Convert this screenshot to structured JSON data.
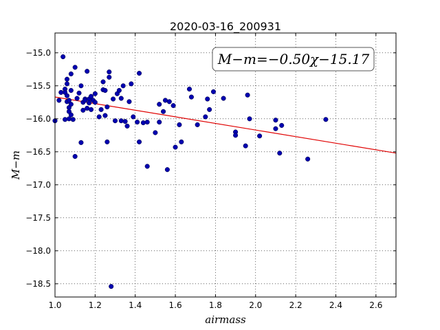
{
  "chart_data": {
    "type": "scatter",
    "title": "2020-03-16_200931",
    "xlabel": "airmass",
    "ylabel": "M−m",
    "xlim": [
      1.0,
      2.7
    ],
    "ylim": [
      -18.7,
      -14.7
    ],
    "y_inverted": true,
    "x_ticks": [
      "1.0",
      "1.2",
      "1.4",
      "1.6",
      "1.8",
      "2.0",
      "2.2",
      "2.4",
      "2.6"
    ],
    "y_ticks": [
      "−15.0",
      "−15.5",
      "−16.0",
      "−16.5",
      "−17.0",
      "−17.5",
      "−18.0",
      "−18.5"
    ],
    "grid": true,
    "annotation": "M−m=−0.50χ−15.17",
    "fit": {
      "slope": -0.5,
      "intercept": -15.17,
      "color": "#e00000"
    },
    "marker_color": "#0000b0",
    "series": [
      {
        "points": [
          [
            1.0,
            -16.03
          ],
          [
            1.02,
            -15.72
          ],
          [
            1.03,
            -15.6
          ],
          [
            1.04,
            -15.06
          ],
          [
            1.05,
            -15.55
          ],
          [
            1.05,
            -15.6
          ],
          [
            1.05,
            -16.01
          ],
          [
            1.06,
            -15.4
          ],
          [
            1.06,
            -15.47
          ],
          [
            1.06,
            -15.65
          ],
          [
            1.06,
            -15.74
          ],
          [
            1.07,
            -15.72
          ],
          [
            1.07,
            -15.83
          ],
          [
            1.07,
            -15.89
          ],
          [
            1.07,
            -16.0
          ],
          [
            1.08,
            -15.32
          ],
          [
            1.08,
            -15.57
          ],
          [
            1.08,
            -15.78
          ],
          [
            1.08,
            -15.94
          ],
          [
            1.09,
            -16.01
          ],
          [
            1.1,
            -16.57
          ],
          [
            1.1,
            -15.22
          ],
          [
            1.11,
            -15.69
          ],
          [
            1.12,
            -15.61
          ],
          [
            1.13,
            -15.5
          ],
          [
            1.13,
            -16.36
          ],
          [
            1.14,
            -15.75
          ],
          [
            1.14,
            -15.87
          ],
          [
            1.15,
            -15.7
          ],
          [
            1.15,
            -15.72
          ],
          [
            1.16,
            -15.28
          ],
          [
            1.16,
            -15.84
          ],
          [
            1.17,
            -15.7
          ],
          [
            1.17,
            -15.76
          ],
          [
            1.18,
            -15.66
          ],
          [
            1.18,
            -15.86
          ],
          [
            1.19,
            -15.72
          ],
          [
            1.2,
            -15.62
          ],
          [
            1.2,
            -15.75
          ],
          [
            1.22,
            -15.97
          ],
          [
            1.23,
            -15.86
          ],
          [
            1.24,
            -15.44
          ],
          [
            1.24,
            -15.56
          ],
          [
            1.25,
            -15.57
          ],
          [
            1.25,
            -15.95
          ],
          [
            1.26,
            -16.35
          ],
          [
            1.26,
            -15.82
          ],
          [
            1.27,
            -15.29
          ],
          [
            1.27,
            -15.37
          ],
          [
            1.28,
            -18.54
          ],
          [
            1.29,
            -15.7
          ],
          [
            1.3,
            -16.03
          ],
          [
            1.31,
            -15.62
          ],
          [
            1.32,
            -15.57
          ],
          [
            1.33,
            -15.69
          ],
          [
            1.33,
            -16.03
          ],
          [
            1.34,
            -15.5
          ],
          [
            1.35,
            -16.04
          ],
          [
            1.36,
            -16.11
          ],
          [
            1.37,
            -15.74
          ],
          [
            1.38,
            -15.47
          ],
          [
            1.39,
            -15.97
          ],
          [
            1.41,
            -16.05
          ],
          [
            1.42,
            -15.31
          ],
          [
            1.42,
            -16.35
          ],
          [
            1.44,
            -16.06
          ],
          [
            1.46,
            -16.05
          ],
          [
            1.46,
            -16.72
          ],
          [
            1.5,
            -16.21
          ],
          [
            1.52,
            -15.78
          ],
          [
            1.52,
            -16.05
          ],
          [
            1.54,
            -15.89
          ],
          [
            1.55,
            -15.72
          ],
          [
            1.56,
            -16.77
          ],
          [
            1.57,
            -15.74
          ],
          [
            1.59,
            -15.8
          ],
          [
            1.6,
            -16.43
          ],
          [
            1.62,
            -16.09
          ],
          [
            1.63,
            -16.35
          ],
          [
            1.67,
            -15.55
          ],
          [
            1.68,
            -15.67
          ],
          [
            1.71,
            -16.09
          ],
          [
            1.75,
            -15.97
          ],
          [
            1.76,
            -15.7
          ],
          [
            1.77,
            -15.86
          ],
          [
            1.79,
            -15.59
          ],
          [
            1.84,
            -15.69
          ],
          [
            1.9,
            -16.2
          ],
          [
            1.9,
            -16.25
          ],
          [
            1.95,
            -16.41
          ],
          [
            1.96,
            -15.64
          ],
          [
            1.97,
            -16.0
          ],
          [
            2.02,
            -16.26
          ],
          [
            2.1,
            -16.02
          ],
          [
            2.1,
            -16.15
          ],
          [
            2.12,
            -16.52
          ],
          [
            2.13,
            -16.1
          ],
          [
            2.26,
            -16.61
          ],
          [
            2.35,
            -16.01
          ]
        ]
      }
    ]
  }
}
